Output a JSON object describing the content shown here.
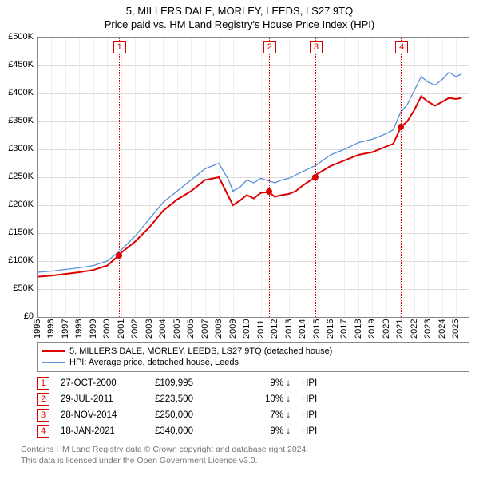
{
  "title_line1": "5, MILLERS DALE, MORLEY, LEEDS, LS27 9TQ",
  "title_line2": "Price paid vs. HM Land Registry's House Price Index (HPI)",
  "chart": {
    "type": "line",
    "background_color": "#ffffff",
    "grid_color": "#dddddd",
    "border_color": "#888888",
    "y": {
      "min": 0,
      "max": 500000,
      "step": 50000,
      "prefix": "£",
      "suffix": "K",
      "divisor": 1000
    },
    "x": {
      "min": 1995,
      "max": 2025.9,
      "ticks": [
        1995,
        1996,
        1997,
        1998,
        1999,
        2000,
        2001,
        2002,
        2003,
        2004,
        2005,
        2006,
        2007,
        2008,
        2009,
        2010,
        2011,
        2012,
        2013,
        2014,
        2015,
        2016,
        2017,
        2018,
        2019,
        2020,
        2021,
        2022,
        2023,
        2024,
        2025
      ]
    },
    "series": [
      {
        "name": "price_paid",
        "label": "5, MILLERS DALE, MORLEY, LEEDS, LS27 9TQ (detached house)",
        "color": "#dd0000",
        "line_width": 2,
        "data": [
          [
            1995,
            72000
          ],
          [
            1996,
            74000
          ],
          [
            1997,
            77000
          ],
          [
            1998,
            80000
          ],
          [
            1999,
            84000
          ],
          [
            2000,
            92000
          ],
          [
            2000.82,
            109995
          ],
          [
            2001,
            115000
          ],
          [
            2002,
            135000
          ],
          [
            2003,
            160000
          ],
          [
            2004,
            190000
          ],
          [
            2005,
            210000
          ],
          [
            2006,
            225000
          ],
          [
            2007,
            245000
          ],
          [
            2008,
            250000
          ],
          [
            2008.7,
            215000
          ],
          [
            2009,
            200000
          ],
          [
            2009.5,
            208000
          ],
          [
            2010,
            218000
          ],
          [
            2010.5,
            212000
          ],
          [
            2011,
            222000
          ],
          [
            2011.58,
            223500
          ],
          [
            2012,
            215000
          ],
          [
            2012.5,
            218000
          ],
          [
            2013,
            220000
          ],
          [
            2013.5,
            225000
          ],
          [
            2014,
            235000
          ],
          [
            2014.91,
            250000
          ],
          [
            2015,
            255000
          ],
          [
            2016,
            270000
          ],
          [
            2017,
            280000
          ],
          [
            2018,
            290000
          ],
          [
            2019,
            295000
          ],
          [
            2020,
            305000
          ],
          [
            2020.5,
            310000
          ],
          [
            2021.05,
            340000
          ],
          [
            2021.5,
            350000
          ],
          [
            2022,
            370000
          ],
          [
            2022.5,
            395000
          ],
          [
            2023,
            385000
          ],
          [
            2023.5,
            378000
          ],
          [
            2024,
            385000
          ],
          [
            2024.5,
            392000
          ],
          [
            2025,
            390000
          ],
          [
            2025.4,
            392000
          ]
        ]
      },
      {
        "name": "hpi",
        "label": "HPI: Average price, detached house, Leeds",
        "color": "#5b8fd6",
        "line_width": 1.3,
        "data": [
          [
            1995,
            80000
          ],
          [
            1996,
            82000
          ],
          [
            1997,
            85000
          ],
          [
            1998,
            88000
          ],
          [
            1999,
            92000
          ],
          [
            2000,
            100000
          ],
          [
            2001,
            120000
          ],
          [
            2002,
            145000
          ],
          [
            2003,
            175000
          ],
          [
            2004,
            205000
          ],
          [
            2005,
            225000
          ],
          [
            2006,
            245000
          ],
          [
            2007,
            265000
          ],
          [
            2008,
            275000
          ],
          [
            2008.7,
            245000
          ],
          [
            2009,
            225000
          ],
          [
            2009.5,
            232000
          ],
          [
            2010,
            245000
          ],
          [
            2010.5,
            240000
          ],
          [
            2011,
            248000
          ],
          [
            2012,
            240000
          ],
          [
            2012.5,
            245000
          ],
          [
            2013,
            248000
          ],
          [
            2014,
            260000
          ],
          [
            2015,
            272000
          ],
          [
            2016,
            290000
          ],
          [
            2017,
            300000
          ],
          [
            2018,
            312000
          ],
          [
            2019,
            318000
          ],
          [
            2020,
            328000
          ],
          [
            2020.5,
            335000
          ],
          [
            2021,
            365000
          ],
          [
            2021.5,
            380000
          ],
          [
            2022,
            405000
          ],
          [
            2022.5,
            430000
          ],
          [
            2023,
            420000
          ],
          [
            2023.5,
            415000
          ],
          [
            2024,
            425000
          ],
          [
            2024.5,
            438000
          ],
          [
            2025,
            430000
          ],
          [
            2025.4,
            435000
          ]
        ]
      }
    ],
    "markers": [
      {
        "n": "1",
        "x": 2000.82,
        "y": 109995
      },
      {
        "n": "2",
        "x": 2011.58,
        "y": 223500
      },
      {
        "n": "3",
        "x": 2014.91,
        "y": 250000
      },
      {
        "n": "4",
        "x": 2021.05,
        "y": 340000
      }
    ]
  },
  "legend": {
    "rows": [
      {
        "color": "#dd0000",
        "label": "5, MILLERS DALE, MORLEY, LEEDS, LS27 9TQ (detached house)"
      },
      {
        "color": "#5b8fd6",
        "label": "HPI: Average price, detached house, Leeds"
      }
    ]
  },
  "table": {
    "hpi_col_label": "HPI",
    "rows": [
      {
        "n": "1",
        "date": "27-OCT-2000",
        "price": "£109,995",
        "delta": "9% ↓",
        "hpi": "HPI"
      },
      {
        "n": "2",
        "date": "29-JUL-2011",
        "price": "£223,500",
        "delta": "10% ↓",
        "hpi": "HPI"
      },
      {
        "n": "3",
        "date": "28-NOV-2014",
        "price": "£250,000",
        "delta": "7% ↓",
        "hpi": "HPI"
      },
      {
        "n": "4",
        "date": "18-JAN-2021",
        "price": "£340,000",
        "delta": "9% ↓",
        "hpi": "HPI"
      }
    ]
  },
  "footer_line1": "Contains HM Land Registry data © Crown copyright and database right 2024.",
  "footer_line2": "This data is licensed under the Open Government Licence v3.0."
}
